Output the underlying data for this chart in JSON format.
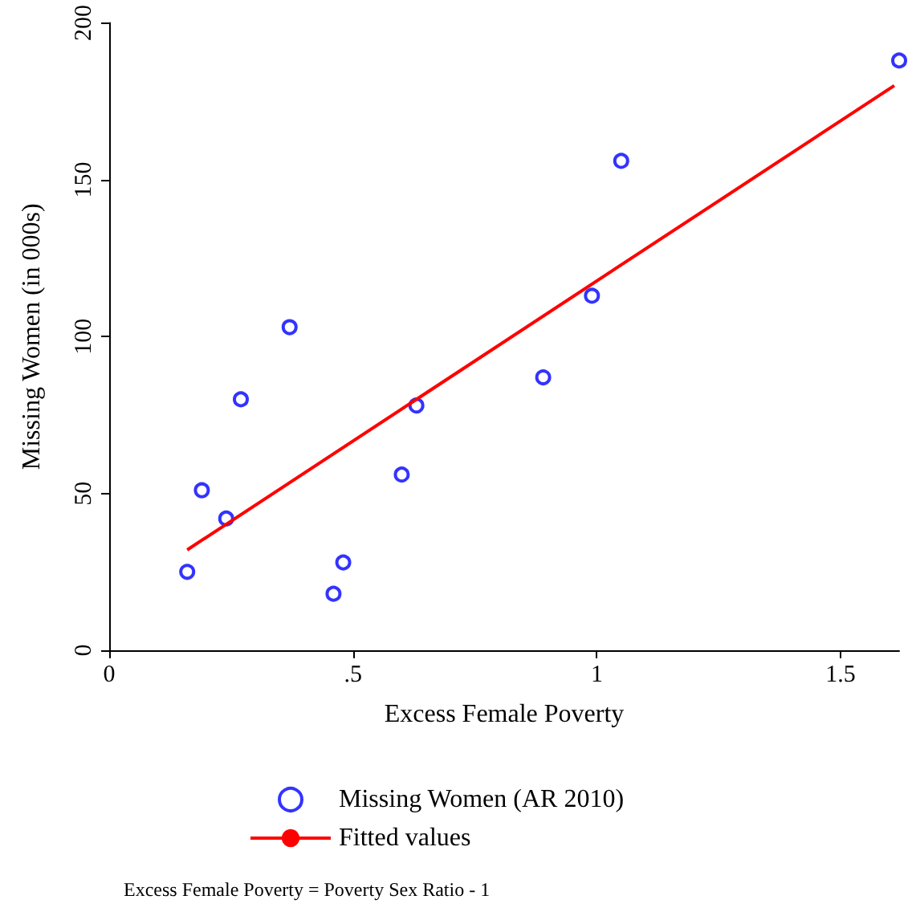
{
  "chart_data": {
    "type": "scatter",
    "xlabel": "Excess Female Poverty",
    "ylabel": "Missing Women (in 000s)",
    "xlim": [
      0,
      1.62
    ],
    "ylim": [
      0,
      200
    ],
    "xticks": [
      0,
      {
        "value": 0.5,
        "label": ".5"
      },
      1,
      1.5
    ],
    "yticks": [
      0,
      50,
      100,
      150,
      200
    ],
    "legend": "bottom",
    "series": [
      {
        "name": "Missing Women (AR 2010)",
        "color": "#0000ff",
        "marker": "circle",
        "x": [
          0.16,
          0.19,
          0.24,
          0.27,
          0.37,
          0.46,
          0.48,
          0.6,
          0.63,
          0.89,
          0.99,
          1.05,
          1.62
        ],
        "values": [
          25,
          51,
          42,
          80,
          103,
          18,
          28,
          56,
          78,
          87,
          113,
          156,
          188
        ]
      },
      {
        "name": "Fitted values",
        "type": "line",
        "color": "#ff0000",
        "marker": "none",
        "x": [
          0.16,
          1.61
        ],
        "values": [
          32,
          180
        ]
      }
    ],
    "annotations": [
      "Excess Female Poverty = Poverty Sex Ratio - 1"
    ]
  }
}
